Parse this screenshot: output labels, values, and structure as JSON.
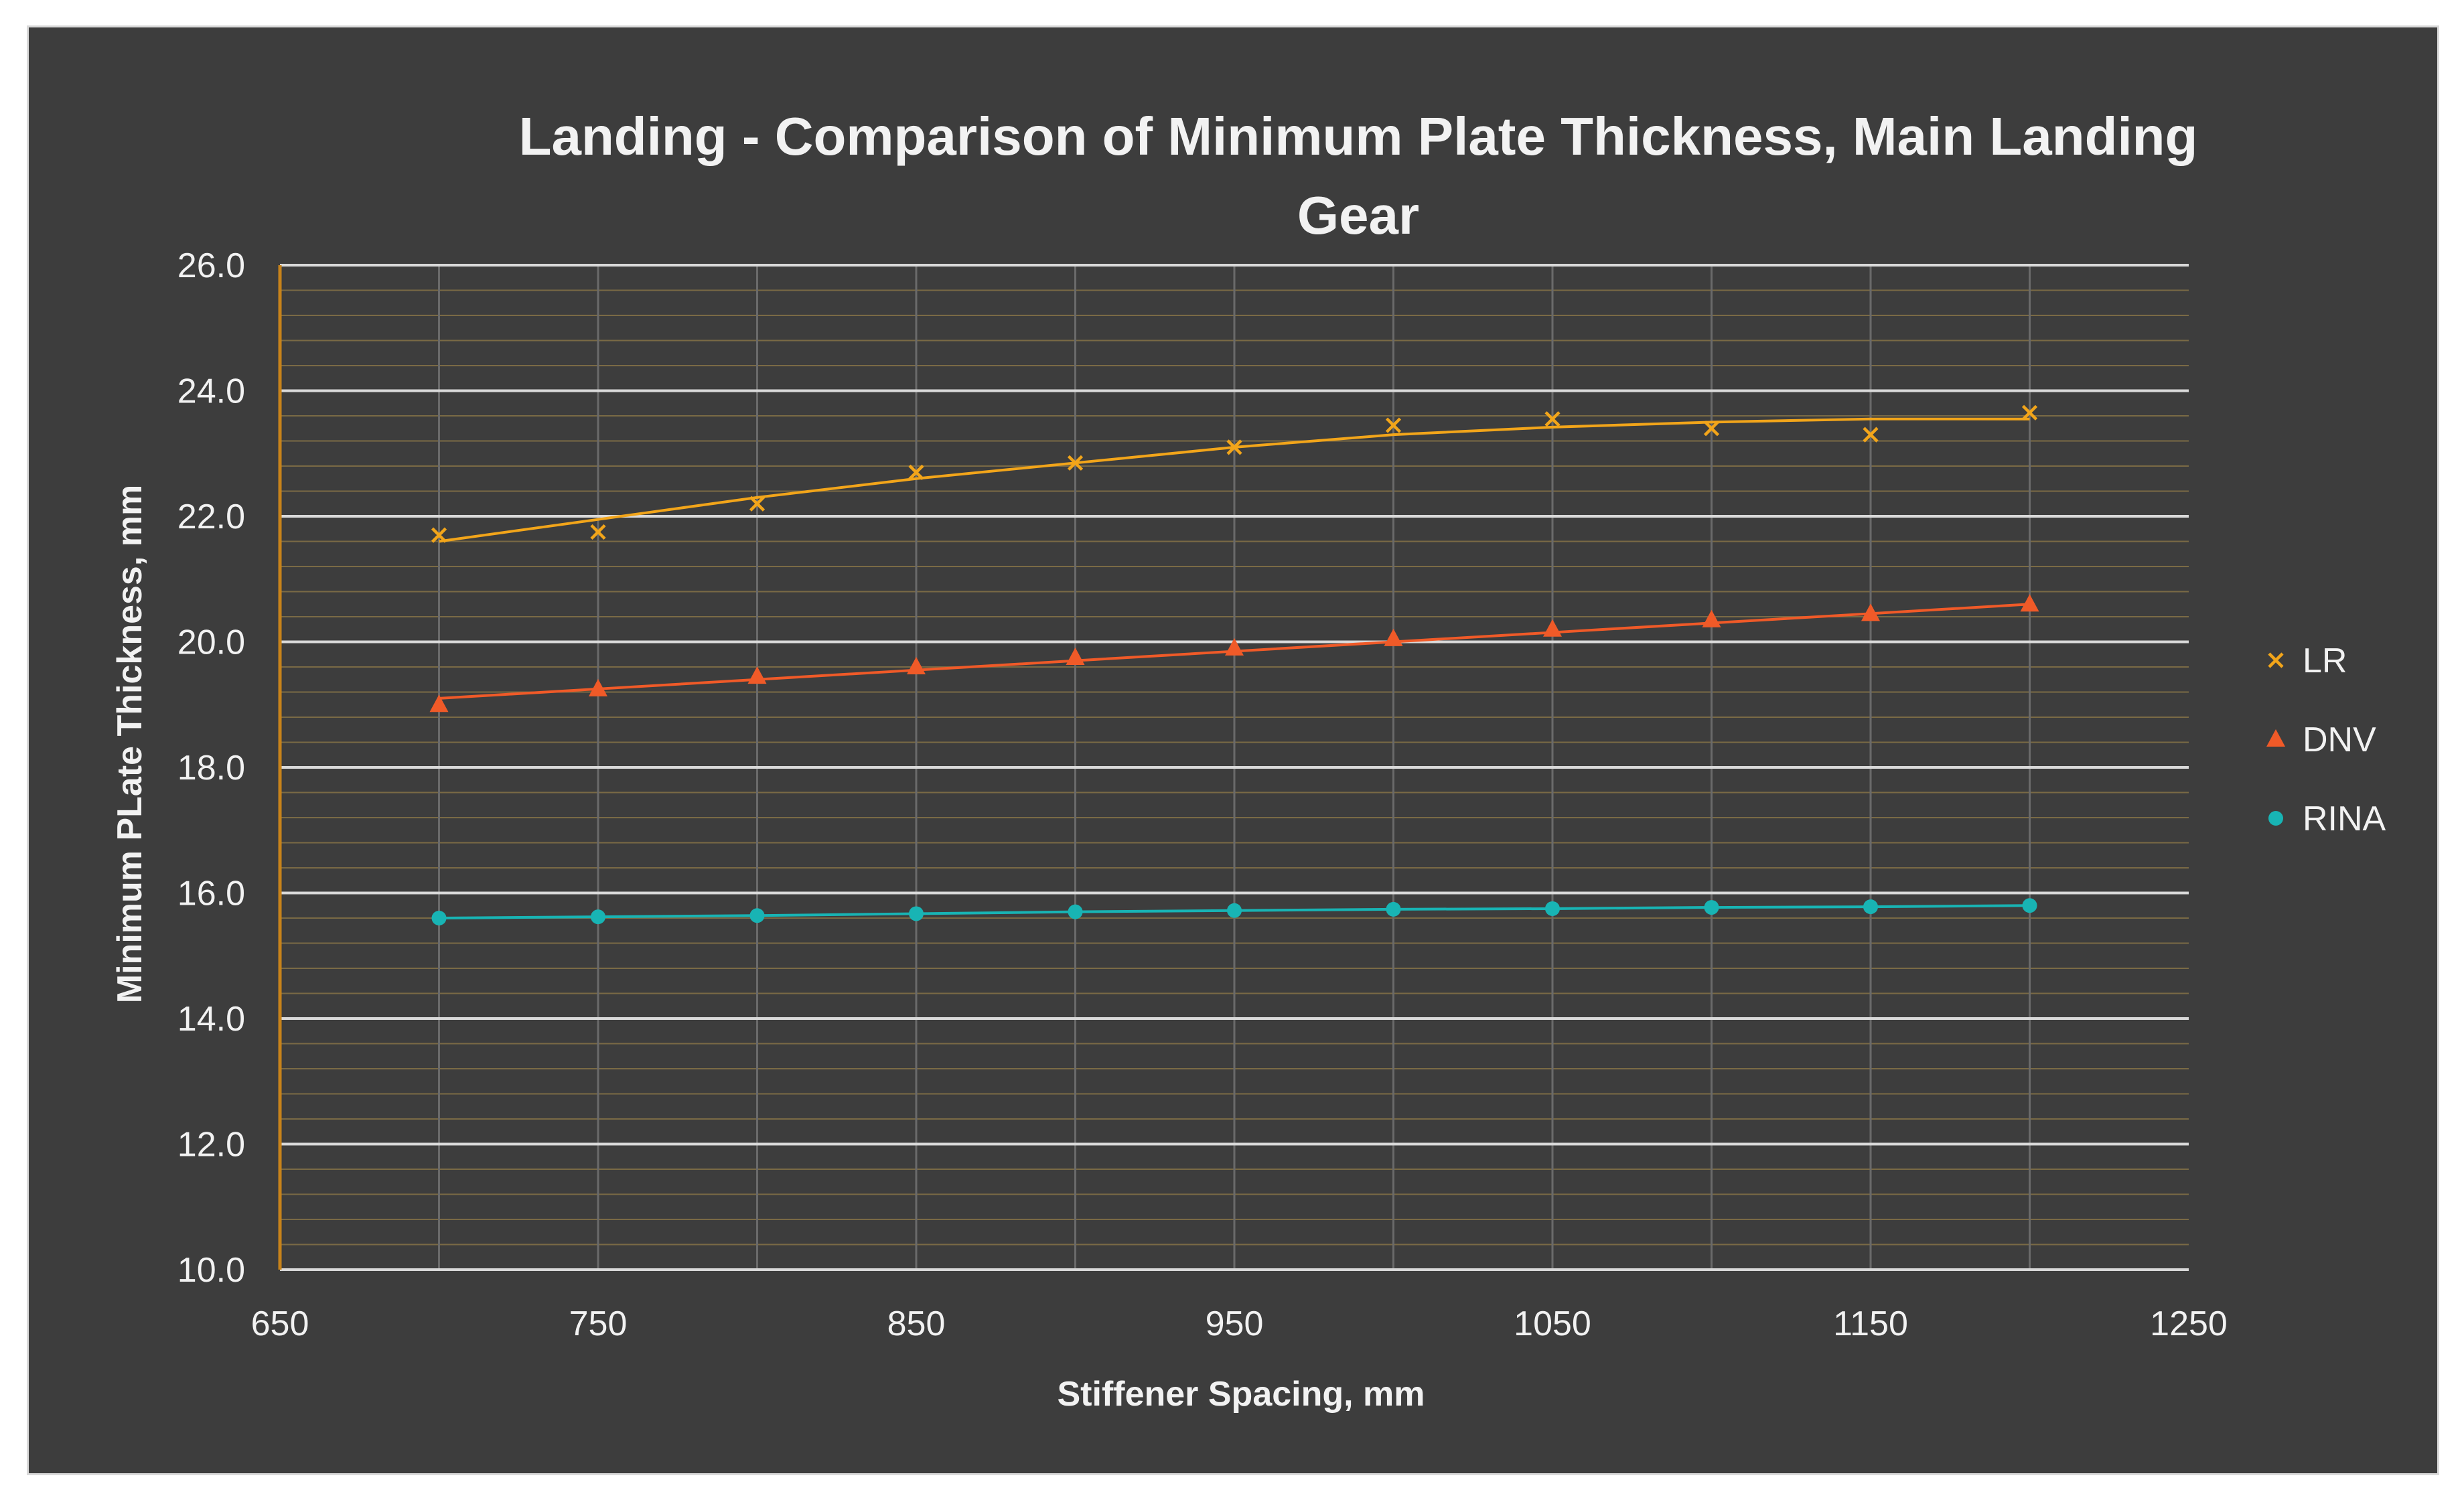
{
  "chart_data": {
    "type": "scatter",
    "title_lines": [
      "Landing - Comparison of Minimum Plate Thickness, Main Landing",
      "Gear"
    ],
    "xlabel": "Stiffener Spacing, mm",
    "ylabel": "Minimum PLate Thickness, mm",
    "xlim": [
      650,
      1250
    ],
    "ylim": [
      10.0,
      26.0
    ],
    "x_ticks": [
      "650",
      "750",
      "850",
      "950",
      "1050",
      "1150",
      "1250"
    ],
    "y_ticks": [
      "10.0",
      "12.0",
      "14.0",
      "16.0",
      "18.0",
      "20.0",
      "22.0",
      "24.0",
      "26.0"
    ],
    "legend_position": "right",
    "x": [
      700,
      750,
      800,
      850,
      900,
      950,
      1000,
      1050,
      1100,
      1150,
      1200
    ],
    "series": [
      {
        "name": "LR",
        "marker": "x",
        "color": "#f2a51a",
        "values": [
          21.7,
          21.75,
          22.2,
          22.7,
          22.85,
          23.1,
          23.45,
          23.55,
          23.4,
          23.3,
          23.65
        ],
        "trendline": [
          21.6,
          21.95,
          22.3,
          22.6,
          22.85,
          23.1,
          23.3,
          23.42,
          23.5,
          23.55,
          23.55
        ]
      },
      {
        "name": "DNV",
        "marker": "triangle",
        "color": "#f05a28",
        "values": [
          19.0,
          19.25,
          19.45,
          19.6,
          19.75,
          19.9,
          20.05,
          20.2,
          20.35,
          20.45,
          20.6
        ],
        "trendline": [
          19.1,
          19.25,
          19.4,
          19.55,
          19.7,
          19.85,
          20.0,
          20.15,
          20.3,
          20.45,
          20.6
        ]
      },
      {
        "name": "RINA",
        "marker": "circle",
        "color": "#18b4b4",
        "values": [
          15.6,
          15.62,
          15.64,
          15.67,
          15.7,
          15.72,
          15.74,
          15.75,
          15.77,
          15.78,
          15.8
        ],
        "trendline": [
          15.6,
          15.62,
          15.64,
          15.67,
          15.7,
          15.72,
          15.74,
          15.75,
          15.77,
          15.78,
          15.8
        ]
      }
    ]
  },
  "colors": {
    "background": "#3d3d3d",
    "text": "#f2f2f2",
    "major_grid": "#d9d9d9",
    "minor_grid": "#7a6a45",
    "vertical_grid": "#6a6a6a",
    "y_axis_line": "#c8831a"
  }
}
